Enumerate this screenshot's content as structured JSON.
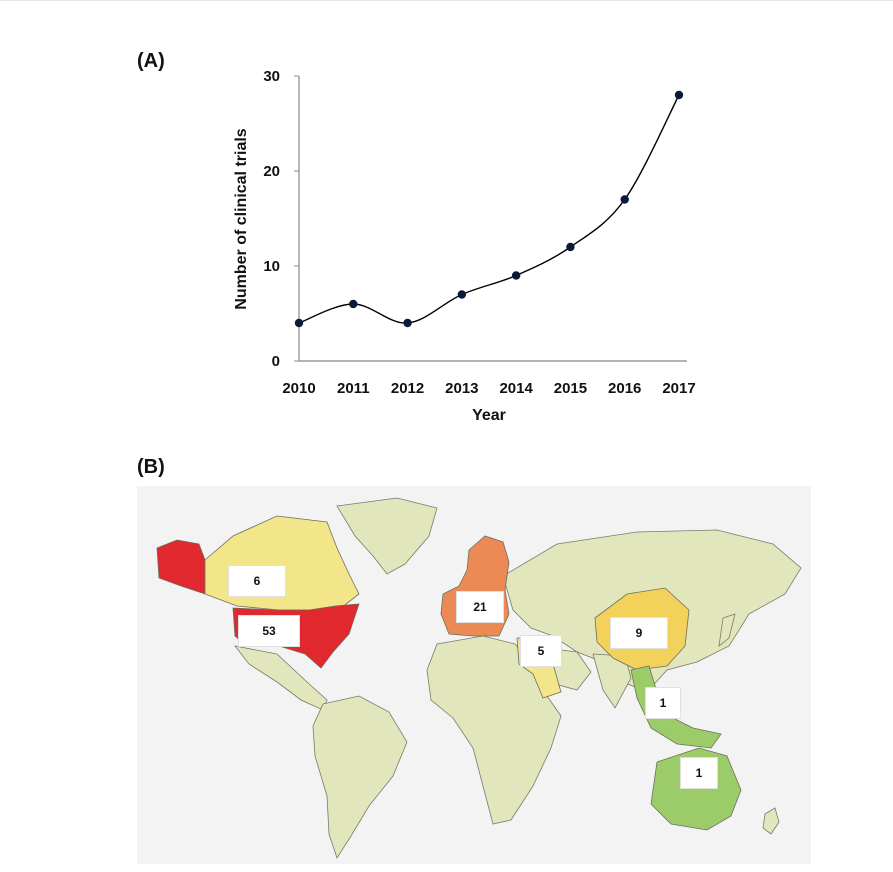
{
  "panel_a": {
    "label": "(A)",
    "chart_data": {
      "type": "line",
      "title": "",
      "xlabel": "Year",
      "ylabel": "Number of clinical trials",
      "x": [
        "2010",
        "2011",
        "2012",
        "2013",
        "2014",
        "2015",
        "2016",
        "2017"
      ],
      "series": [
        {
          "values": [
            4,
            6,
            4,
            7,
            9,
            12,
            17,
            28
          ]
        }
      ],
      "ylim": [
        0,
        30
      ],
      "yticks": [
        "0",
        "10",
        "20",
        "30"
      ],
      "grid": false,
      "marker": "circle",
      "line_style": "smoothed",
      "colors": {
        "line": "#000000",
        "marker": "#0b1a3a"
      }
    }
  },
  "panel_b": {
    "label": "(B)",
    "regions": [
      {
        "region": "canada",
        "count": "6",
        "color": "#f3e58a"
      },
      {
        "region": "united-states",
        "count": "53",
        "color": "#e0282e"
      },
      {
        "region": "europe",
        "count": "21",
        "color": "#ec8a55"
      },
      {
        "region": "egypt",
        "count": "5",
        "color": "#f3e58a"
      },
      {
        "region": "china",
        "count": "9",
        "color": "#f2d25a"
      },
      {
        "region": "southeast-asia",
        "count": "1",
        "color": "#9ccc6a"
      },
      {
        "region": "australia",
        "count": "1",
        "color": "#9ccc6a"
      }
    ],
    "base_land_color": "#e2e6bd",
    "ocean_color": "#f3f3f3"
  }
}
